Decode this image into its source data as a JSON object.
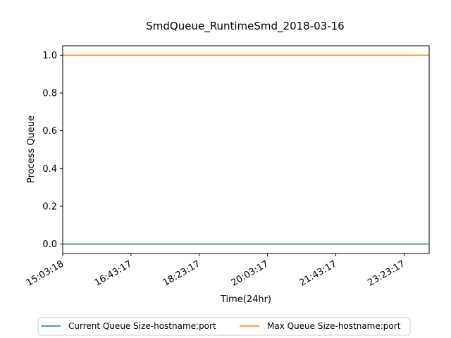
{
  "chart_data": {
    "type": "line",
    "title": "SmdQueue_RuntimeSmd_2018-03-16",
    "xlabel": "Time(24hr)",
    "ylabel": "Process Queue",
    "x_ticks": [
      "15:03:18",
      "16:43:17",
      "18:23:17",
      "20:03:17",
      "21:43:17",
      "23:23:17"
    ],
    "x": [
      "15:03:18",
      "23:59:59"
    ],
    "xlim": [
      "15:03:18",
      "23:59:59"
    ],
    "ylim": [
      -0.05,
      1.05
    ],
    "y_ticks": [
      "0.0",
      "0.2",
      "0.4",
      "0.6",
      "0.8",
      "1.0"
    ],
    "grid": false,
    "legend_position": "bottom-center",
    "series": [
      {
        "name": "Current Queue Size-hostname:port",
        "color": "#1f77b4",
        "values": [
          0,
          0
        ]
      },
      {
        "name": "Max Queue Size-hostname:port",
        "color": "#ff7f0e",
        "values": [
          1,
          1
        ]
      }
    ]
  }
}
